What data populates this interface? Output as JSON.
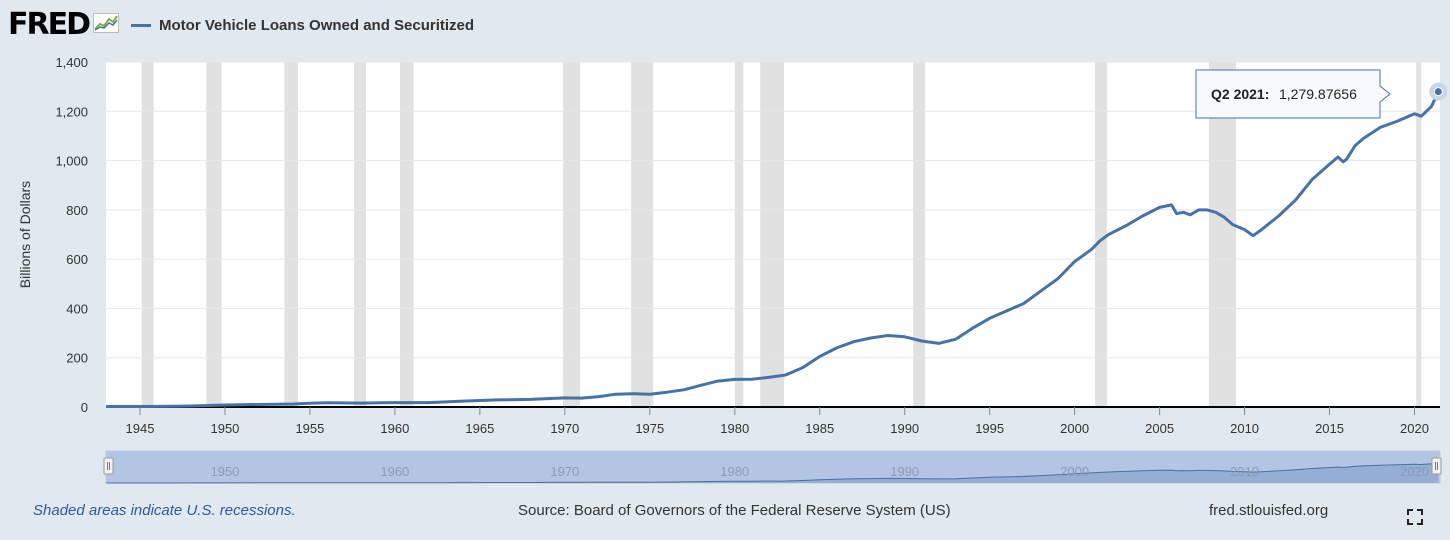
{
  "header": {
    "logo_text": "FRED",
    "logo_icon": "line-chart-icon",
    "series_title": "Motor Vehicle Loans Owned and Securitized"
  },
  "tooltip": {
    "date": "Q2 2021:",
    "value": "1,279.87656"
  },
  "navigator": {
    "labels": [
      "1950",
      "1960",
      "1970",
      "1980",
      "1990",
      "2000",
      "2010",
      "2020"
    ]
  },
  "footer": {
    "recessions_note": "Shaded areas indicate U.S. recessions.",
    "source": "Source: Board of Governors of the Federal Reserve System (US)",
    "url": "fred.stlouisfed.org"
  },
  "colors": {
    "line": "#4572a7",
    "recession": "#e1e1e1",
    "background": "#e1e9f0",
    "plot": "#ffffff"
  },
  "chart_data": {
    "type": "line",
    "title": "Motor Vehicle Loans Owned and Securitized",
    "ylabel": "Billions of Dollars",
    "xlabel": "",
    "xlim": [
      1943,
      2021.5
    ],
    "ylim": [
      0,
      1400
    ],
    "yticks": [
      0,
      200,
      400,
      600,
      800,
      1000,
      1200,
      1400
    ],
    "ytick_labels": [
      "0",
      "200",
      "400",
      "600",
      "800",
      "1,000",
      "1,200",
      "1,400"
    ],
    "xticks": [
      1945,
      1950,
      1955,
      1960,
      1965,
      1970,
      1975,
      1980,
      1985,
      1990,
      1995,
      2000,
      2005,
      2010,
      2015,
      2020
    ],
    "grid": true,
    "legend": "top-left",
    "recessions": [
      [
        1945.1,
        1945.8
      ],
      [
        1948.9,
        1949.8
      ],
      [
        1953.5,
        1954.3
      ],
      [
        1957.6,
        1958.3
      ],
      [
        1960.3,
        1961.1
      ],
      [
        1969.9,
        1970.9
      ],
      [
        1973.9,
        1975.2
      ],
      [
        1980.0,
        1980.5
      ],
      [
        1981.5,
        1982.9
      ],
      [
        1990.5,
        1991.2
      ],
      [
        2001.2,
        2001.9
      ],
      [
        2007.9,
        2009.5
      ],
      [
        2020.1,
        2020.4
      ]
    ],
    "series": [
      {
        "name": "Motor Vehicle Loans Owned and Securitized",
        "x": [
          1943,
          1945,
          1947,
          1948,
          1950,
          1952,
          1954,
          1955,
          1956,
          1958,
          1960,
          1962,
          1964,
          1966,
          1968,
          1970,
          1971,
          1972,
          1973,
          1974,
          1975,
          1976,
          1977,
          1978,
          1979,
          1980,
          1981,
          1982,
          1983,
          1984,
          1985,
          1986,
          1987,
          1988,
          1989,
          1990,
          1991,
          1992,
          1993,
          1994,
          1995,
          1996,
          1997,
          1998,
          1999,
          2000,
          2001,
          2001.5,
          2002,
          2003,
          2004,
          2005,
          2005.7,
          2006,
          2006.4,
          2006.8,
          2007.3,
          2007.8,
          2008.3,
          2008.8,
          2009.3,
          2010,
          2010.5,
          2011,
          2012,
          2013,
          2014,
          2015,
          2015.5,
          2015.8,
          2016,
          2016.5,
          2017,
          2018,
          2019,
          2020,
          2020.4,
          2021,
          2021.4
        ],
        "values": [
          2,
          2,
          3,
          4,
          8,
          10,
          12,
          15,
          17,
          16,
          18,
          18,
          24,
          29,
          31,
          37,
          36,
          42,
          52,
          54,
          52,
          60,
          70,
          88,
          105,
          112,
          113,
          120,
          130,
          160,
          205,
          240,
          265,
          280,
          290,
          285,
          268,
          258,
          275,
          320,
          360,
          390,
          420,
          470,
          520,
          590,
          640,
          675,
          700,
          735,
          775,
          810,
          820,
          785,
          790,
          780,
          800,
          800,
          790,
          770,
          740,
          720,
          695,
          720,
          775,
          840,
          925,
          985,
          1015,
          995,
          1005,
          1060,
          1090,
          1135,
          1160,
          1190,
          1180,
          1220,
          1280
        ]
      }
    ],
    "annotation": {
      "x": 2021.4,
      "y": 1279.87656,
      "label": "Q2 2021: 1,279.87656"
    }
  }
}
